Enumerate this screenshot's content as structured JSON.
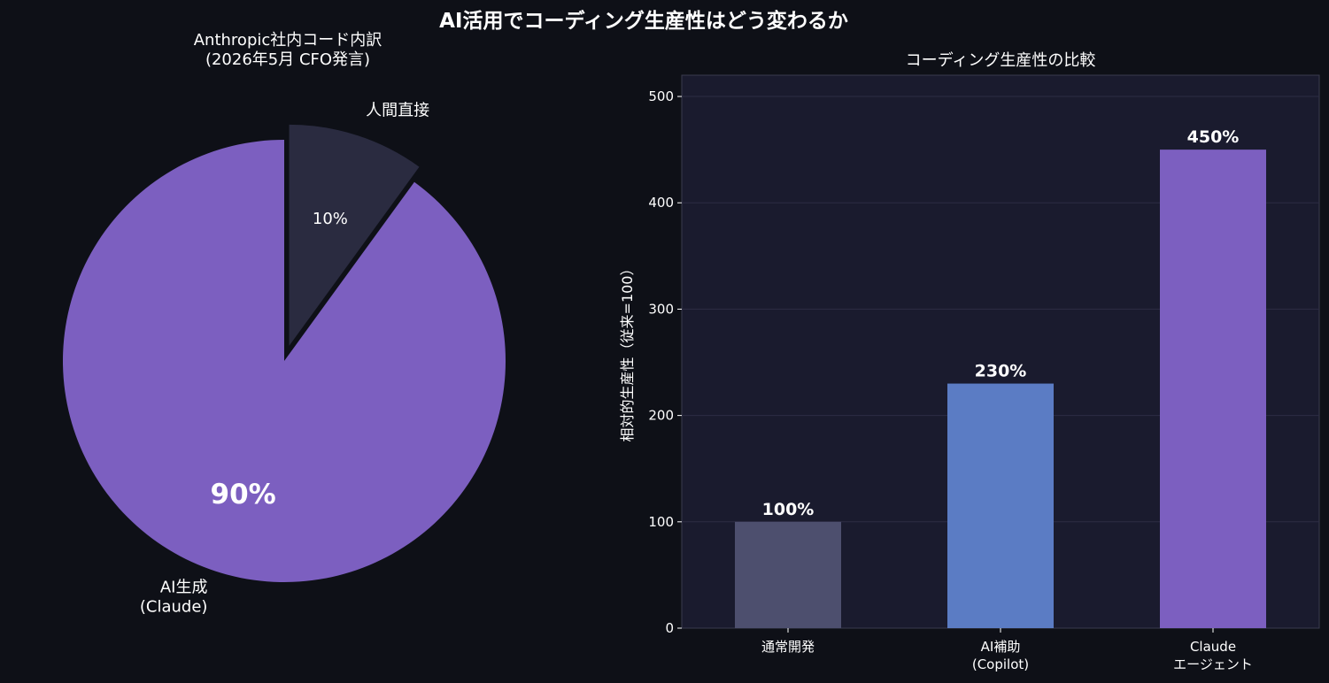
{
  "figure": {
    "title": "AI活用でコーディング生産性はどう変わるか"
  },
  "chart_data": [
    {
      "type": "pie",
      "title_lines": [
        "Anthropic社内コード内訳",
        "(2026年5月 CFO発言)"
      ],
      "slices": [
        {
          "label_lines": [
            "人間直接"
          ],
          "value": 10,
          "pct_label": "10%",
          "color": "#2a2b40",
          "exploded": true
        },
        {
          "label_lines": [
            "AI生成",
            "(Claude)"
          ],
          "value": 90,
          "pct_label": "90%",
          "color": "#7c5fc0",
          "exploded": false
        }
      ],
      "start_angle_deg": 90,
      "direction": "clockwise"
    },
    {
      "type": "bar",
      "title": "コーディング生産性の比較",
      "ylabel": "相対的生産性（従来=100）",
      "ylim": [
        0,
        520
      ],
      "yticks": [
        0,
        100,
        200,
        300,
        400,
        500
      ],
      "grid": true,
      "categories": [
        {
          "lines": [
            "通常開発"
          ]
        },
        {
          "lines": [
            "AI補助",
            "(Copilot)"
          ]
        },
        {
          "lines": [
            "Claude",
            "エージェント"
          ]
        }
      ],
      "values": [
        100,
        230,
        450
      ],
      "value_labels": [
        "100%",
        "230%",
        "450%"
      ],
      "colors": [
        "#4d4f6e",
        "#5b7cc4",
        "#7c5fc0"
      ],
      "plot_background": "#1a1b2e"
    }
  ]
}
